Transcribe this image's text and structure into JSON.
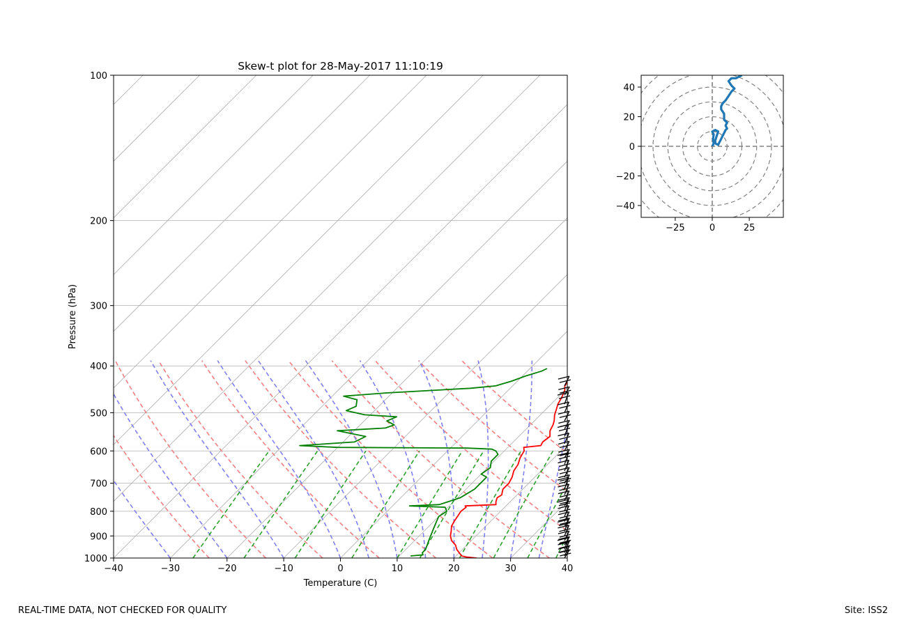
{
  "chart_data": [
    {
      "type": "line",
      "title": "Skew-t plot for 28-May-2017 11:10:19",
      "xlabel": "Temperature (C)",
      "ylabel": "Pressure (hPa)",
      "xlim": [
        -40,
        40
      ],
      "ylim": [
        1000,
        100
      ],
      "y_scale": "log",
      "skew_angle_deg": 45,
      "x_ticks": [
        "−40",
        "−30",
        "−20",
        "−10",
        "0",
        "10",
        "20",
        "30",
        "40"
      ],
      "y_ticks": [
        "100",
        "200",
        "300",
        "400",
        "500",
        "600",
        "700",
        "800",
        "900",
        "1000"
      ],
      "grid": true,
      "reference_lines": {
        "isotherms": {
          "style": "solid",
          "color": "#b0b0b0"
        },
        "dry_adiabats": {
          "style": "dashed",
          "color": "#f08080",
          "theta_K": [
            250,
            260,
            270,
            280,
            290,
            300,
            310,
            320,
            330,
            340
          ]
        },
        "moist_adiabats": {
          "style": "dashed",
          "color": "#7f7fee",
          "start_temp_C": [
            -30,
            -20,
            -10,
            0,
            5,
            10,
            15,
            20,
            25,
            30,
            35,
            40
          ]
        },
        "mixing_ratio_lines": {
          "style": "dashed",
          "color": "#2ca02c",
          "start_temp_C": [
            -26,
            -17,
            -8,
            2,
            10,
            14,
            21,
            27,
            33,
            38
          ]
        }
      },
      "series": [
        {
          "key": "temperature",
          "color": "#ff0000",
          "points": [
            [
              1000,
              24.0
            ],
            [
              995,
              22.0
            ],
            [
              990,
              21.0
            ],
            [
              975,
              20.0
            ],
            [
              960,
              19.0
            ],
            [
              940,
              18.0
            ],
            [
              920,
              16.5
            ],
            [
              900,
              15.5
            ],
            [
              880,
              14.8
            ],
            [
              860,
              14.0
            ],
            [
              840,
              13.6
            ],
            [
              820,
              13.3
            ],
            [
              800,
              13.0
            ],
            [
              785,
              13.2
            ],
            [
              780,
              12.8
            ],
            [
              775,
              18.0
            ],
            [
              765,
              17.5
            ],
            [
              750,
              17.0
            ],
            [
              740,
              17.3
            ],
            [
              720,
              16.5
            ],
            [
              700,
              16.5
            ],
            [
              680,
              16.0
            ],
            [
              660,
              15.2
            ],
            [
              640,
              14.8
            ],
            [
              620,
              14.0
            ],
            [
              600,
              13.5
            ],
            [
              590,
              12.8
            ],
            [
              585,
              15.5
            ],
            [
              575,
              15.2
            ],
            [
              560,
              15.5
            ],
            [
              545,
              14.5
            ],
            [
              530,
              14.0
            ],
            [
              520,
              13.5
            ],
            [
              505,
              12.5
            ],
            [
              495,
              12.0
            ],
            [
              480,
              11.2
            ],
            [
              465,
              10.7
            ],
            [
              450,
              10.0
            ],
            [
              440,
              9.2
            ],
            [
              425,
              8.8
            ],
            [
              415,
              8.0
            ],
            [
              405,
              7.3
            ]
          ]
        },
        {
          "key": "dewpoint",
          "color": "#008000",
          "points": [
            [
              990,
              12.0
            ],
            [
              985,
              14.0
            ],
            [
              975,
              13.5
            ],
            [
              960,
              13.5
            ],
            [
              940,
              13.0
            ],
            [
              920,
              12.5
            ],
            [
              900,
              12.0
            ],
            [
              880,
              11.5
            ],
            [
              860,
              11.0
            ],
            [
              840,
              10.5
            ],
            [
              820,
              10.0
            ],
            [
              800,
              10.5
            ],
            [
              785,
              9.5
            ],
            [
              780,
              3.0
            ],
            [
              775,
              8.0
            ],
            [
              765,
              9.0
            ],
            [
              750,
              10.5
            ],
            [
              735,
              11.0
            ],
            [
              720,
              11.5
            ],
            [
              700,
              11.5
            ],
            [
              680,
              11.5
            ],
            [
              670,
              10.0
            ],
            [
              650,
              10.5
            ],
            [
              630,
              9.5
            ],
            [
              610,
              9.5
            ],
            [
              600,
              8.5
            ],
            [
              595,
              7.5
            ],
            [
              592,
              3.0
            ],
            [
              590,
              -20.0
            ],
            [
              585,
              -27.0
            ],
            [
              575,
              -18.0
            ],
            [
              560,
              -17.0
            ],
            [
              545,
              -23.0
            ],
            [
              538,
              -15.0
            ],
            [
              530,
              -14.0
            ],
            [
              520,
              -16.0
            ],
            [
              510,
              -15.0
            ],
            [
              505,
              -21.0
            ],
            [
              495,
              -25.0
            ],
            [
              485,
              -24.0
            ],
            [
              470,
              -25.0
            ],
            [
              462,
              -28.0
            ],
            [
              455,
              -21.0
            ],
            [
              445,
              -7.0
            ],
            [
              440,
              -3.0
            ],
            [
              430,
              -1.0
            ],
            [
              420,
              0.5
            ],
            [
              410,
              2.5
            ],
            [
              405,
              3.0
            ]
          ]
        }
      ],
      "wind_barbs": {
        "color": "#000000",
        "pressures": [
          1000,
          990,
          975,
          960,
          940,
          920,
          900,
          880,
          860,
          840,
          820,
          800,
          780,
          760,
          740,
          720,
          700,
          680,
          660,
          640,
          620,
          600,
          580,
          560,
          540,
          520,
          500,
          480,
          460,
          440
        ]
      }
    },
    {
      "type": "line",
      "title": "",
      "xlim": [
        -48,
        48
      ],
      "ylim": [
        -48,
        48
      ],
      "x_ticks": [
        "−25",
        "0",
        "25"
      ],
      "y_ticks": [
        "−40",
        "−20",
        "0",
        "20",
        "40"
      ],
      "rings": [
        10,
        20,
        30,
        40,
        50,
        60
      ],
      "ring_color": "#808080",
      "series": [
        {
          "key": "hodograph",
          "color": "#1f77b4",
          "points": [
            [
              0,
              0
            ],
            [
              1,
              2
            ],
            [
              0.5,
              5
            ],
            [
              1,
              8
            ],
            [
              0,
              10
            ],
            [
              2,
              11
            ],
            [
              4,
              10
            ],
            [
              3,
              7
            ],
            [
              2,
              4
            ],
            [
              2,
              2
            ],
            [
              4,
              1
            ],
            [
              5,
              3
            ],
            [
              6,
              5
            ],
            [
              7,
              7
            ],
            [
              8,
              9
            ],
            [
              9,
              11
            ],
            [
              10,
              12
            ],
            [
              9,
              14
            ],
            [
              10,
              16
            ],
            [
              8,
              18
            ],
            [
              8,
              22
            ],
            [
              6,
              25
            ],
            [
              6,
              27
            ],
            [
              7,
              29
            ],
            [
              9,
              31
            ],
            [
              11,
              34
            ],
            [
              13,
              37
            ],
            [
              15,
              39
            ],
            [
              13,
              41
            ],
            [
              11,
              44
            ],
            [
              13,
              46
            ],
            [
              16,
              46
            ],
            [
              20,
              48
            ]
          ]
        }
      ]
    }
  ],
  "footer": {
    "left": "REAL-TIME DATA, NOT CHECKED FOR QUALITY",
    "right": "Site: ISS2"
  }
}
